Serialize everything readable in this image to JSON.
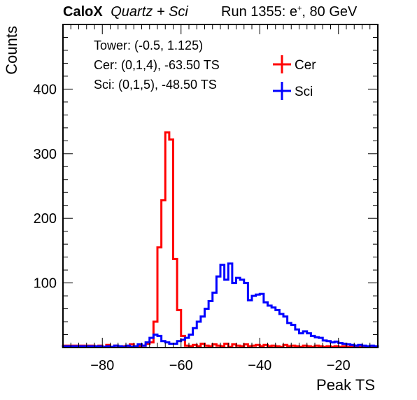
{
  "header": {
    "experiment": "CaloX",
    "subtitle": "Quartz + Sci",
    "run_text": "Run 1355: e",
    "run_sup": "+",
    "run_tail": ", 80 GeV"
  },
  "info": {
    "tower": "Tower: (-0.5, 1.125)",
    "cer": "Cer: (0,1,4), -63.50 TS",
    "sci": "Sci: (0,1,5), -48.50 TS"
  },
  "chart_data": {
    "type": "histogram",
    "xlabel": "Peak TS",
    "ylabel": "Counts",
    "xlim": [
      -90,
      -10
    ],
    "ylim": [
      0,
      500
    ],
    "xticks": [
      -80,
      -60,
      -40,
      -20
    ],
    "yticks": [
      100,
      200,
      300,
      400
    ],
    "legend_position": "top-right",
    "series": [
      {
        "name": "Cer",
        "color": "#ff0000",
        "bins": [
          [
            -90,
            3
          ],
          [
            -82,
            1
          ],
          [
            -81,
            3
          ],
          [
            -80,
            1
          ],
          [
            -79,
            4
          ],
          [
            -78,
            1
          ],
          [
            -77,
            3
          ],
          [
            -76,
            1
          ],
          [
            -75,
            2
          ],
          [
            -74,
            1
          ],
          [
            -73,
            5
          ],
          [
            -72,
            1
          ],
          [
            -71,
            2
          ],
          [
            -70,
            3
          ],
          [
            -69,
            6
          ],
          [
            -68,
            8
          ],
          [
            -67,
            40
          ],
          [
            -66,
            155
          ],
          [
            -65,
            228
          ],
          [
            -64,
            333
          ],
          [
            -63,
            322
          ],
          [
            -62,
            137
          ],
          [
            -61,
            58
          ],
          [
            -60,
            18
          ],
          [
            -59,
            3
          ],
          [
            -58,
            2
          ],
          [
            -57,
            4
          ],
          [
            -56,
            2
          ],
          [
            -55,
            6
          ],
          [
            -54,
            3
          ],
          [
            -53,
            2
          ],
          [
            -52,
            5
          ],
          [
            -51,
            3
          ],
          [
            -50,
            2
          ],
          [
            -49,
            6
          ],
          [
            -48,
            1
          ],
          [
            -47,
            5
          ],
          [
            -46,
            3
          ],
          [
            -45,
            2
          ],
          [
            -44,
            5
          ],
          [
            -43,
            2
          ],
          [
            -42,
            3
          ],
          [
            -41,
            4
          ],
          [
            -40,
            2
          ],
          [
            -39,
            4
          ],
          [
            -38,
            2
          ],
          [
            -37,
            3
          ],
          [
            -36,
            2
          ],
          [
            -35,
            1
          ],
          [
            -34,
            4
          ],
          [
            -33,
            2
          ],
          [
            -32,
            3
          ],
          [
            -31,
            2
          ],
          [
            -30,
            1
          ],
          [
            -29,
            3
          ],
          [
            -28,
            2
          ],
          [
            -27,
            1
          ],
          [
            -26,
            3
          ],
          [
            -25,
            2
          ],
          [
            -24,
            1
          ],
          [
            -23,
            2
          ],
          [
            -22,
            1
          ],
          [
            -21,
            2
          ],
          [
            -20,
            1
          ],
          [
            -19,
            2
          ],
          [
            -18,
            1
          ],
          [
            -17,
            2
          ],
          [
            -16,
            1
          ],
          [
            -15,
            1
          ],
          [
            -14,
            2
          ],
          [
            -13,
            1
          ],
          [
            -12,
            1
          ],
          [
            -11,
            2
          ],
          [
            -10,
            2
          ]
        ]
      },
      {
        "name": "Sci",
        "color": "#0000ff",
        "bins": [
          [
            -90,
            2
          ],
          [
            -82,
            2
          ],
          [
            -81,
            2
          ],
          [
            -80,
            1
          ],
          [
            -79,
            2
          ],
          [
            -78,
            1
          ],
          [
            -77,
            3
          ],
          [
            -76,
            2
          ],
          [
            -75,
            1
          ],
          [
            -74,
            3
          ],
          [
            -73,
            1
          ],
          [
            -72,
            2
          ],
          [
            -71,
            5
          ],
          [
            -70,
            3
          ],
          [
            -69,
            8
          ],
          [
            -68,
            15
          ],
          [
            -67,
            20
          ],
          [
            -66,
            18
          ],
          [
            -65,
            10
          ],
          [
            -64,
            8
          ],
          [
            -63,
            6
          ],
          [
            -62,
            6
          ],
          [
            -61,
            10
          ],
          [
            -60,
            12
          ],
          [
            -59,
            15
          ],
          [
            -58,
            20
          ],
          [
            -57,
            30
          ],
          [
            -56,
            40
          ],
          [
            -55,
            48
          ],
          [
            -54,
            60
          ],
          [
            -53,
            72
          ],
          [
            -52,
            85
          ],
          [
            -51,
            110
          ],
          [
            -50,
            128
          ],
          [
            -49,
            105
          ],
          [
            -48,
            130
          ],
          [
            -47,
            100
          ],
          [
            -46,
            108
          ],
          [
            -45,
            105
          ],
          [
            -44,
            100
          ],
          [
            -43,
            73
          ],
          [
            -42,
            80
          ],
          [
            -41,
            82
          ],
          [
            -40,
            83
          ],
          [
            -39,
            70
          ],
          [
            -38,
            65
          ],
          [
            -37,
            62
          ],
          [
            -36,
            58
          ],
          [
            -35,
            52
          ],
          [
            -34,
            48
          ],
          [
            -33,
            38
          ],
          [
            -32,
            35
          ],
          [
            -31,
            28
          ],
          [
            -30,
            22
          ],
          [
            -29,
            25
          ],
          [
            -28,
            22
          ],
          [
            -27,
            18
          ],
          [
            -26,
            16
          ],
          [
            -25,
            15
          ],
          [
            -24,
            11
          ],
          [
            -23,
            10
          ],
          [
            -22,
            8
          ],
          [
            -21,
            9
          ],
          [
            -20,
            7
          ],
          [
            -19,
            6
          ],
          [
            -18,
            5
          ],
          [
            -17,
            4
          ],
          [
            -16,
            3
          ],
          [
            -15,
            4
          ],
          [
            -14,
            3
          ],
          [
            -13,
            2
          ],
          [
            -12,
            3
          ],
          [
            -11,
            2
          ],
          [
            -10,
            2
          ]
        ]
      }
    ]
  }
}
